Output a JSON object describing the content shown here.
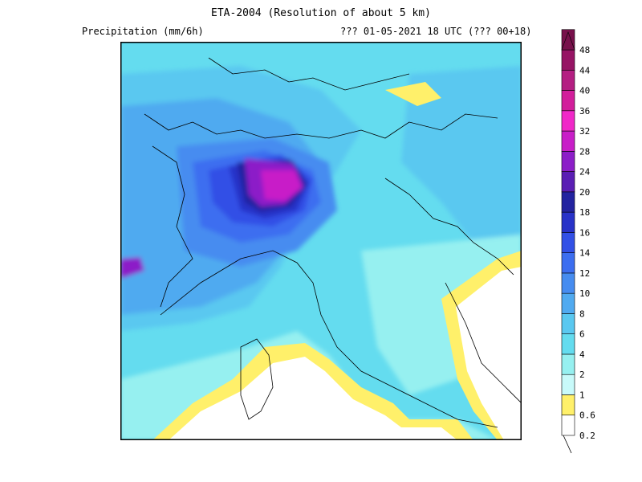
{
  "header": {
    "title": "ETA-2004 (Resolution of about 5 km)",
    "variable": "Precipitation (mm/6h)",
    "valid_time": "??? 01-05-2021 18 UTC (??? 00+18)"
  },
  "legend": {
    "levels": [
      "0.2",
      "0.6",
      "1",
      "2",
      "4",
      "6",
      "8",
      "10",
      "12",
      "14",
      "16",
      "18",
      "20",
      "24",
      "28",
      "32",
      "36",
      "40",
      "44",
      "48"
    ],
    "colors": [
      "#ffffff",
      "#fff06a",
      "#c8fafa",
      "#96f0f0",
      "#64dcef",
      "#5ac8f0",
      "#50aaf0",
      "#468cf0",
      "#3c6ef0",
      "#3250e6",
      "#2832c8",
      "#2323a0",
      "#5a1eb4",
      "#8c1ec8",
      "#c81ec8",
      "#f028c8",
      "#d21e9b",
      "#b41e82",
      "#961464",
      "#78104b"
    ]
  }
}
